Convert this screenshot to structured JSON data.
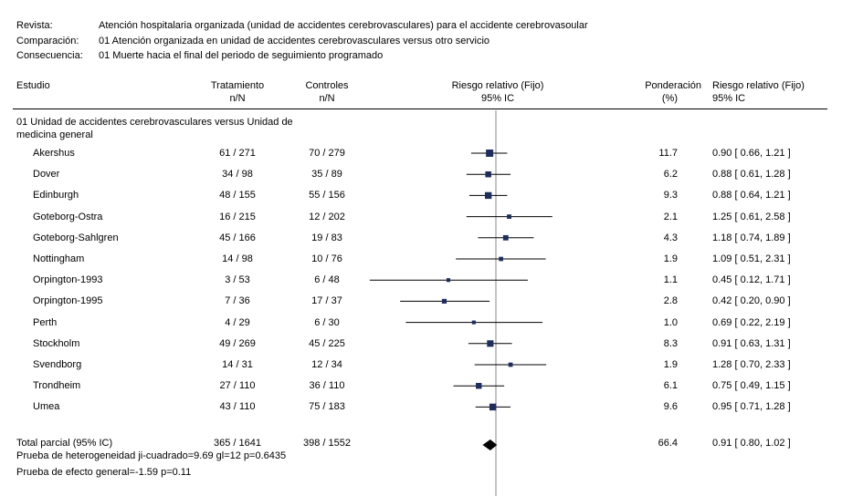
{
  "header": {
    "review_label": "Revista:",
    "review_value": "Atención hospitalaria organizada (unidad de accidentes cerebrovasculares) para el accidente cerebrovasoular",
    "comparison_label": "Comparación:",
    "comparison_value": "01 Atención organizada en unidad de accidentes cerebrovasculares versus otro servicio",
    "outcome_label": "Consecuencia:",
    "outcome_value": "01 Muerte hacia el final del periodo de seguimiento programado"
  },
  "columns": {
    "study": "Estudio",
    "treatment": "Tratamiento",
    "treatment_sub": "n/N",
    "control": "Controles",
    "control_sub": "n/N",
    "rr_plot": "Riesgo relativo (Fijo)",
    "rr_plot_sub": "95% IC",
    "weight": "Ponderación",
    "weight_sub": "(%)",
    "rr_text": "Riesgo relativo (Fijo)",
    "rr_text_sub": "95% IC"
  },
  "subgroup_title_line1": "01 Unidad de accidentes cerebrovasculares versus Unidad de",
  "subgroup_title_line2": "medicina general",
  "total": {
    "label": "Total parcial (95% IC)",
    "treatment": "365 / 1641",
    "control": "398 / 1552",
    "weight": "66.4",
    "ci_text": "0.91 [ 0.80, 1.02 ]",
    "heterogeneity": "Prueba de heterogeneidad ji-cuadrado=9.69 gl=12 p=0.6435",
    "overall_effect": "Prueba de efecto general=-1.59 p=0.11"
  },
  "chart_data": {
    "type": "forest",
    "x_scale": "log",
    "null_line": 1.0,
    "xlim": [
      0.1,
      10
    ],
    "studies": [
      {
        "name": "Akershus",
        "treatment": "61 / 271",
        "control": "70 / 279",
        "weight": "11.7",
        "ci_text": "0.90 [ 0.66, 1.21 ]",
        "rr": 0.9,
        "lo": 0.66,
        "hi": 1.21
      },
      {
        "name": "Dover",
        "treatment": "34 / 98",
        "control": "35 / 89",
        "weight": "6.2",
        "ci_text": "0.88 [ 0.61, 1.28 ]",
        "rr": 0.88,
        "lo": 0.61,
        "hi": 1.28
      },
      {
        "name": "Edinburgh",
        "treatment": "48 / 155",
        "control": "55 / 156",
        "weight": "9.3",
        "ci_text": "0.88 [ 0.64, 1.21 ]",
        "rr": 0.88,
        "lo": 0.64,
        "hi": 1.21
      },
      {
        "name": "Goteborg-Ostra",
        "treatment": "16 / 215",
        "control": "12 / 202",
        "weight": "2.1",
        "ci_text": "1.25 [ 0.61, 2.58 ]",
        "rr": 1.25,
        "lo": 0.61,
        "hi": 2.58
      },
      {
        "name": "Goteborg-Sahlgren",
        "treatment": "45 / 166",
        "control": "19 / 83",
        "weight": "4.3",
        "ci_text": "1.18 [ 0.74, 1.89 ]",
        "rr": 1.18,
        "lo": 0.74,
        "hi": 1.89
      },
      {
        "name": "Nottingham",
        "treatment": "14 / 98",
        "control": "10 / 76",
        "weight": "1.9",
        "ci_text": "1.09 [ 0.51, 2.31 ]",
        "rr": 1.09,
        "lo": 0.51,
        "hi": 2.31
      },
      {
        "name": "Orpington-1993",
        "treatment": "3 / 53",
        "control": "6 / 48",
        "weight": "1.1",
        "ci_text": "0.45 [ 0.12, 1.71 ]",
        "rr": 0.45,
        "lo": 0.12,
        "hi": 1.71
      },
      {
        "name": "Orpington-1995",
        "treatment": "7 / 36",
        "control": "17 / 37",
        "weight": "2.8",
        "ci_text": "0.42 [ 0.20, 0.90 ]",
        "rr": 0.42,
        "lo": 0.2,
        "hi": 0.9
      },
      {
        "name": "Perth",
        "treatment": "4 / 29",
        "control": "6 / 30",
        "weight": "1.0",
        "ci_text": "0.69 [ 0.22, 2.19 ]",
        "rr": 0.69,
        "lo": 0.22,
        "hi": 2.19
      },
      {
        "name": "Stockholm",
        "treatment": "49 / 269",
        "control": "45 / 225",
        "weight": "8.3",
        "ci_text": "0.91 [ 0.63, 1.31 ]",
        "rr": 0.91,
        "lo": 0.63,
        "hi": 1.31
      },
      {
        "name": "Svendborg",
        "treatment": "14 / 31",
        "control": "12 / 34",
        "weight": "1.9",
        "ci_text": "1.28 [ 0.70, 2.33 ]",
        "rr": 1.28,
        "lo": 0.7,
        "hi": 2.33
      },
      {
        "name": "Trondheim",
        "treatment": "27 / 110",
        "control": "36 / 110",
        "weight": "6.1",
        "ci_text": "0.75 [ 0.49, 1.15 ]",
        "rr": 0.75,
        "lo": 0.49,
        "hi": 1.15
      },
      {
        "name": "Umea",
        "treatment": "43 / 110",
        "control": "75 / 183",
        "weight": "9.6",
        "ci_text": "0.95 [ 0.71, 1.28 ]",
        "rr": 0.95,
        "lo": 0.71,
        "hi": 1.28
      }
    ],
    "pooled": {
      "rr": 0.91,
      "lo": 0.8,
      "hi": 1.02
    },
    "colors": {
      "square": "#1f2d5c",
      "line": "#000000",
      "null_line": "#888888"
    }
  }
}
